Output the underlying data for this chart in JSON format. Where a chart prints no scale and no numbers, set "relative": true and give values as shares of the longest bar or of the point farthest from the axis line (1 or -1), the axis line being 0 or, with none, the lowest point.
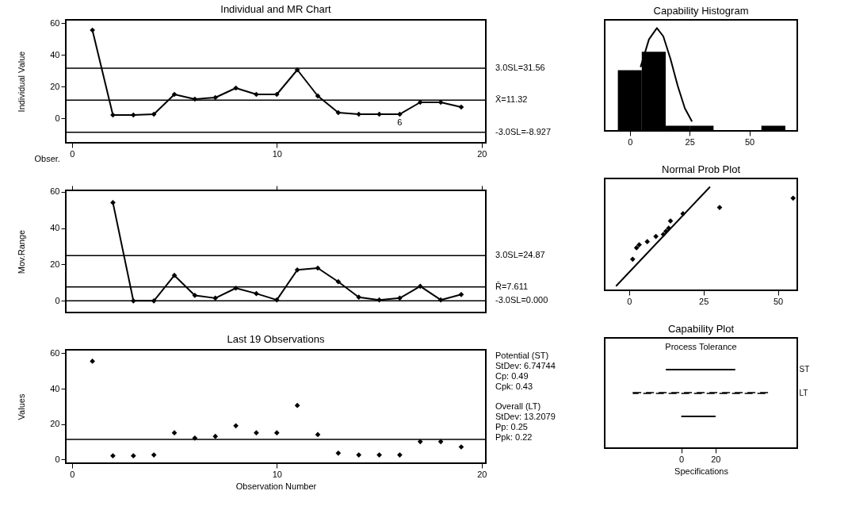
{
  "chart_data": [
    {
      "type": "line",
      "title": "Individual and MR Chart",
      "xlabel": "Obser.",
      "ylabel": "Individual Value",
      "x": [
        1,
        2,
        3,
        4,
        5,
        6,
        7,
        8,
        9,
        10,
        11,
        12,
        13,
        14,
        15,
        16,
        17,
        18,
        19
      ],
      "series": [
        {
          "color": "#000000",
          "values": [
            55.5,
            2,
            2,
            2.5,
            15,
            12,
            13,
            19,
            15,
            15,
            30.5,
            14,
            3.5,
            2.5,
            2.5,
            2.5,
            10,
            10,
            7
          ]
        }
      ],
      "marker": "diamond",
      "xlim": [
        -0.3,
        20.2
      ],
      "ylim": [
        -15.5,
        62
      ],
      "xticks": [
        0,
        10,
        20
      ],
      "yticks": [
        0,
        20,
        40,
        60
      ],
      "ref_lines": [
        {
          "axis": "y",
          "value": 31.56,
          "label": "3.0SL=31.56"
        },
        {
          "axis": "y",
          "value": 11.32,
          "label": "X̄=11.32"
        },
        {
          "axis": "y",
          "value": -8.927,
          "label": "-3.0SL=-8.927"
        }
      ],
      "annotations": [
        {
          "text": "6",
          "x": 16,
          "y": 2.5
        }
      ],
      "grid": false
    },
    {
      "type": "line",
      "ylabel": "Mov.Range",
      "x": [
        2,
        3,
        4,
        5,
        6,
        7,
        8,
        9,
        10,
        11,
        12,
        13,
        14,
        15,
        16,
        17,
        18,
        19
      ],
      "series": [
        {
          "color": "#000000",
          "values": [
            54,
            0,
            0,
            14,
            3,
            1.5,
            7,
            4,
            0.5,
            17,
            18,
            10.5,
            2,
            0.5,
            1.5,
            8,
            0.5,
            3.5
          ]
        }
      ],
      "marker": "diamond",
      "xlim": [
        -0.3,
        20.2
      ],
      "ylim": [
        -6.4,
        60.7
      ],
      "xticks": [
        0,
        10,
        20
      ],
      "yticks": [
        0,
        20,
        40,
        60
      ],
      "tick_labels": "y",
      "ref_lines": [
        {
          "axis": "y",
          "value": 24.87,
          "label": "3.0SL=24.87"
        },
        {
          "axis": "y",
          "value": 7.611,
          "label": "R̄=7.611"
        },
        {
          "axis": "y",
          "value": 0,
          "label": "-3.0SL=0.000"
        }
      ],
      "grid": false
    },
    {
      "type": "scatter",
      "title": "Last 19 Observations",
      "xlabel": "Observation Number",
      "ylabel": "Values",
      "x": [
        1,
        2,
        3,
        4,
        5,
        6,
        7,
        8,
        9,
        10,
        11,
        12,
        13,
        14,
        15,
        16,
        17,
        18,
        19
      ],
      "series": [
        {
          "color": "#000000",
          "values": [
            55.5,
            2,
            2,
            2.5,
            15,
            12,
            13,
            19,
            15,
            15,
            30.5,
            14,
            3.5,
            2.5,
            2.5,
            2.5,
            10,
            10,
            7
          ]
        }
      ],
      "marker": "diamond",
      "xlim": [
        -0.3,
        20.2
      ],
      "ylim": [
        -2.2,
        62
      ],
      "xticks": [
        0,
        10,
        20
      ],
      "yticks": [
        0,
        20,
        40,
        60
      ],
      "ref_lines": [
        {
          "axis": "y",
          "value": 11.32
        }
      ],
      "annotations": [
        "Potential (ST)",
        "StDev: 6.74744",
        "Cp:  0.49",
        "Cpk:  0.43",
        "Overall (LT)",
        "StDev: 13.2079",
        "Pp:  0.25",
        "Ppk:  0.22"
      ],
      "grid": false
    },
    {
      "type": "histogram",
      "title": "Capability Histogram",
      "relative": true,
      "bins": [
        -5,
        5,
        15,
        25,
        35,
        45,
        55,
        65
      ],
      "values": [
        0.59,
        0.77,
        0.05,
        0.05,
        0,
        0,
        0.05
      ],
      "color": "#000000",
      "series": [
        {
          "type": "line",
          "color": "#000000",
          "x": [
            4.5,
            8,
            11.32,
            14,
            17,
            20,
            23,
            26
          ],
          "values": [
            0.62,
            0.89,
            1,
            0.92,
            0.7,
            0.44,
            0.22,
            0.09
          ]
        }
      ],
      "xlim": [
        -10.5,
        70
      ],
      "xticks": [
        0,
        25,
        50
      ],
      "tick_labels": "x",
      "grid": false
    },
    {
      "type": "scatter",
      "title": "Normal Prob Plot",
      "relative": true,
      "series": [
        {
          "color": "#000000",
          "x": [
            1.2,
            2.5,
            3.4,
            6.1,
            9,
            11.5,
            12.4,
            13.3,
            13.9,
            18.1,
            30.4,
            55.1
          ],
          "values": [
            0.3,
            0.41,
            0.44,
            0.47,
            0.52,
            0.54,
            0.57,
            0.6,
            0.67,
            0.74,
            0.8,
            0.89
          ]
        },
        {
          "type": "line",
          "color": "#000000",
          "marker": "none",
          "x": [
            -4.4,
            27.2
          ],
          "values": [
            0.04,
            1
          ]
        }
      ],
      "marker": "diamond",
      "xlim": [
        -8.2,
        56.5
      ],
      "xticks": [
        0,
        25,
        50
      ],
      "tick_labels": "x",
      "grid": false
    },
    {
      "type": "bar",
      "orientation": "horizontal",
      "title": "Capability Plot",
      "subtitle": "Process Tolerance",
      "xlabel": "Specifications",
      "categories": [
        "ST",
        "LT",
        null
      ],
      "series": [
        {
          "color": "#000000",
          "base": [
            -9,
            null,
            null
          ],
          "values": [
            40.5,
            null,
            null
          ]
        },
        {
          "color": "#000000",
          "line_style": "dashed",
          "base": [
            null,
            -28,
            null
          ],
          "values": [
            null,
            79,
            null
          ]
        },
        {
          "color": "#000000",
          "base": [
            null,
            null,
            0
          ],
          "values": [
            null,
            null,
            20
          ]
        }
      ],
      "xlim": [
        -44.7,
        67.7
      ],
      "xticks": [
        0,
        20
      ],
      "grid": false
    }
  ]
}
